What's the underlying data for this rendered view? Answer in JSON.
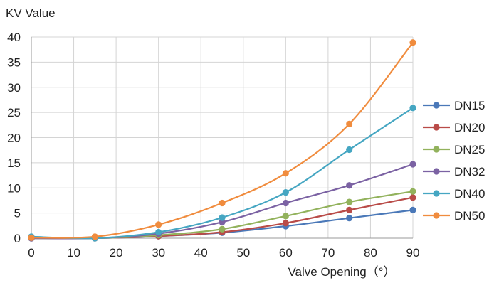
{
  "chart_data": {
    "type": "line",
    "ylabel": "KV Value",
    "xlabel": "Valve Opening（°）",
    "xlim": [
      0,
      90
    ],
    "ylim": [
      0,
      40
    ],
    "x_ticks": [
      "0",
      "10",
      "20",
      "30",
      "40",
      "50",
      "60",
      "70",
      "80",
      "90"
    ],
    "y_ticks": [
      "0",
      "5",
      "10",
      "15",
      "20",
      "25",
      "30",
      "35",
      "40"
    ],
    "grid": true,
    "legend": "right",
    "x": [
      0,
      15,
      30,
      45,
      60,
      75,
      90
    ],
    "series": [
      {
        "name": "DN15",
        "color": "#4a78b8",
        "values": [
          0,
          0,
          0.4,
          1.1,
          2.4,
          4.0,
          5.6
        ]
      },
      {
        "name": "DN20",
        "color": "#b94b48",
        "values": [
          0,
          0,
          0.4,
          1.2,
          3.0,
          5.6,
          8.1
        ]
      },
      {
        "name": "DN25",
        "color": "#92b25c",
        "values": [
          0,
          0,
          0.6,
          1.8,
          4.4,
          7.2,
          9.3
        ]
      },
      {
        "name": "DN32",
        "color": "#7b62a3",
        "values": [
          0,
          0,
          0.9,
          3.2,
          7.0,
          10.5,
          14.7
        ]
      },
      {
        "name": "DN40",
        "color": "#45a6c2",
        "values": [
          0.3,
          0,
          1.2,
          4.1,
          9.1,
          17.6,
          25.9
        ]
      },
      {
        "name": "DN50",
        "color": "#f08c3e",
        "values": [
          0.1,
          0.3,
          2.7,
          7.0,
          12.9,
          22.7,
          38.9
        ]
      }
    ]
  }
}
